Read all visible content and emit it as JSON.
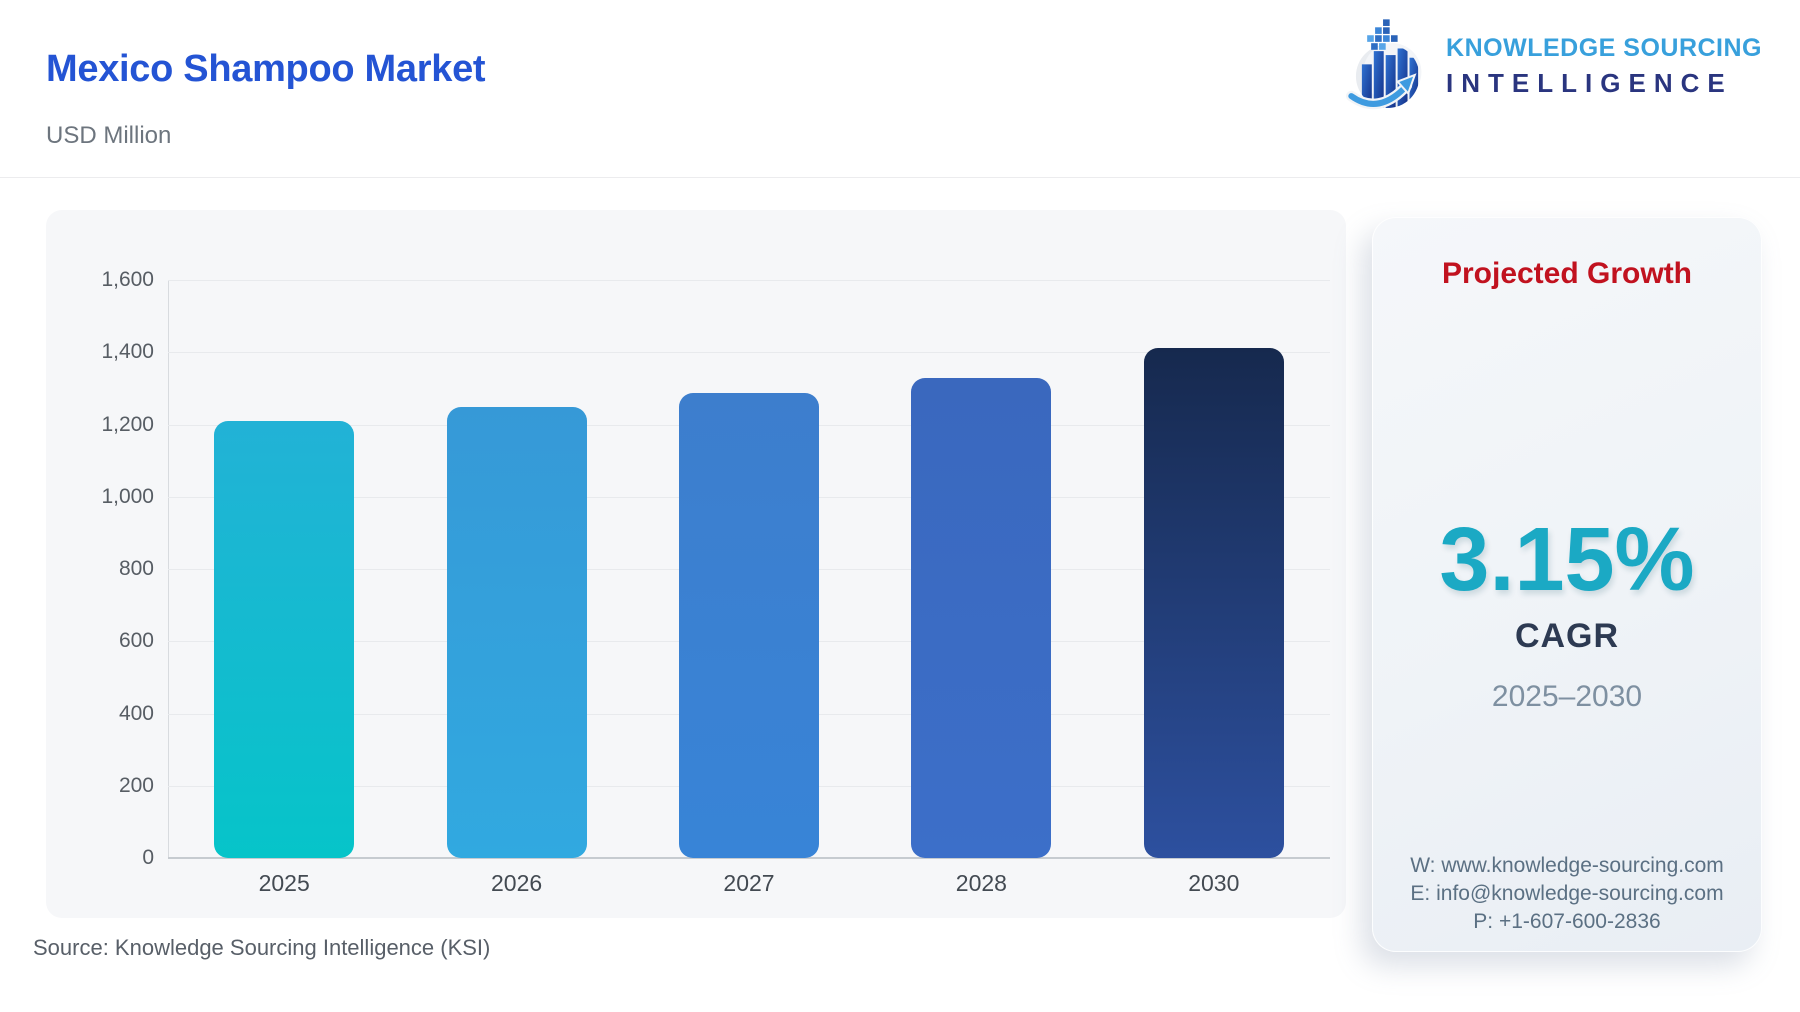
{
  "header": {
    "title": "Mexico Shampoo Market",
    "units": "USD Million"
  },
  "brand": {
    "line1": "KNOWLEDGE SOURCING",
    "line2": "INTELLIGENCE",
    "line1_color": "#38a0dc",
    "line2_color": "#2a357f"
  },
  "chart_data": {
    "type": "bar",
    "title": "Mexico Shampoo Market",
    "ylabel": "USD Million",
    "xlabel": "",
    "categories": [
      "2025",
      "2026",
      "2027",
      "2028",
      "2030"
    ],
    "values": [
      1210,
      1248,
      1287,
      1328,
      1413
    ],
    "ylim": [
      0,
      1600
    ],
    "ytick_step": 200,
    "grid": true,
    "legend": "none",
    "bar_colors": [
      {
        "top": "#22b2d6",
        "bottom": "#06c4c9"
      },
      {
        "top": "#3699d7",
        "bottom": "#31a9e0"
      },
      {
        "top": "#3d7ecd",
        "bottom": "#3884d7"
      },
      {
        "top": "#3a68be",
        "bottom": "#3c6fc9"
      },
      {
        "top": "#16294e",
        "bottom": "#2d509f"
      }
    ]
  },
  "panel": {
    "title": "Projected Growth",
    "title_color": "#c1121f",
    "cagr_value": "3.15%",
    "cagr_value_color": "#1ba9c4",
    "cagr_label": "CAGR",
    "period": "2025–2030",
    "contact": {
      "website": "W: www.knowledge-sourcing.com",
      "email": "E: info@knowledge-sourcing.com",
      "phone": "P: +1-607-600-2836"
    }
  },
  "footer": {
    "source": "Source: Knowledge Sourcing Intelligence (KSI)"
  }
}
